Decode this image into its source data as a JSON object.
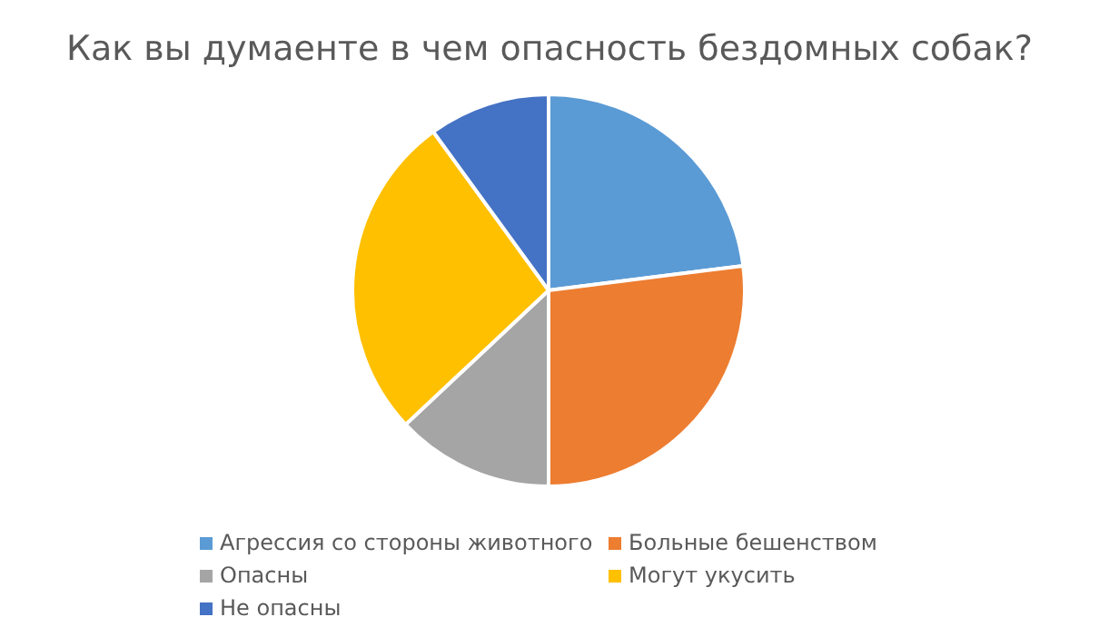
{
  "chart_data": {
    "type": "pie",
    "title": "Как вы думаенте в чем опасность бездомных собак?",
    "categories": [
      "Агрессия со стороны животного",
      "Больные бешенством",
      "Опасны",
      "Могут укусить",
      "Не опасны"
    ],
    "values": [
      23,
      27,
      13,
      27,
      10
    ],
    "colors": [
      "#5b9bd5",
      "#ed7d31",
      "#a5a5a5",
      "#ffc000",
      "#4472c4"
    ],
    "legend": "bottom"
  }
}
